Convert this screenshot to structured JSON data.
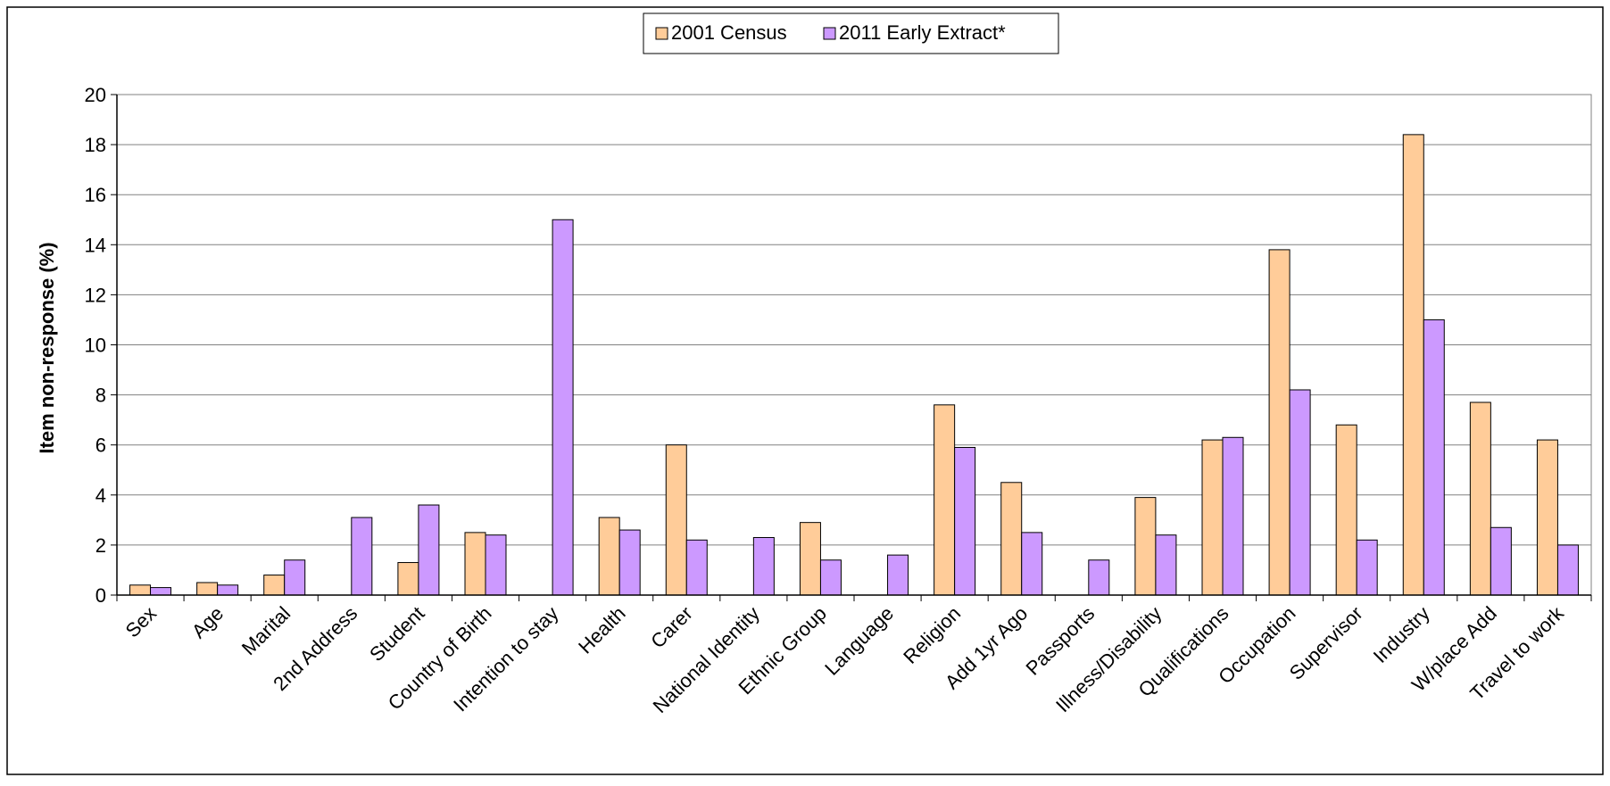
{
  "chart_data": {
    "type": "bar",
    "title": "",
    "xlabel": "",
    "ylabel": "Item non-response (%)",
    "ylim": [
      0,
      20
    ],
    "yticks": [
      0,
      2,
      4,
      6,
      8,
      10,
      12,
      14,
      16,
      18,
      20
    ],
    "grid": true,
    "legend_position": "top-center",
    "categories": [
      "Sex",
      "Age",
      "Marital",
      "2nd Address",
      "Student",
      "Country of Birth",
      "Intention to stay",
      "Health",
      "Carer",
      "National Identity",
      "Ethnic Group",
      "Language",
      "Religion",
      "Add 1yr Ago",
      "Passports",
      "Illness/Disability",
      "Qualifications",
      "Occupation",
      "Supervisor",
      "Industry",
      "W/place Add",
      "Travel to work"
    ],
    "series": [
      {
        "name": "2001 Census",
        "color": "#FFCC99",
        "values": [
          0.4,
          0.5,
          0.8,
          null,
          1.3,
          2.5,
          null,
          3.1,
          6.0,
          null,
          2.9,
          null,
          7.6,
          4.5,
          null,
          3.9,
          6.2,
          13.8,
          6.8,
          18.4,
          7.7,
          6.2
        ]
      },
      {
        "name": "2011 Early Extract*",
        "color": "#CC99FF",
        "values": [
          0.3,
          0.4,
          1.4,
          3.1,
          3.6,
          2.4,
          15.0,
          2.6,
          2.2,
          2.3,
          1.4,
          1.6,
          5.9,
          2.5,
          1.4,
          2.4,
          6.3,
          8.2,
          2.2,
          11.0,
          2.7,
          2.0
        ]
      }
    ]
  }
}
